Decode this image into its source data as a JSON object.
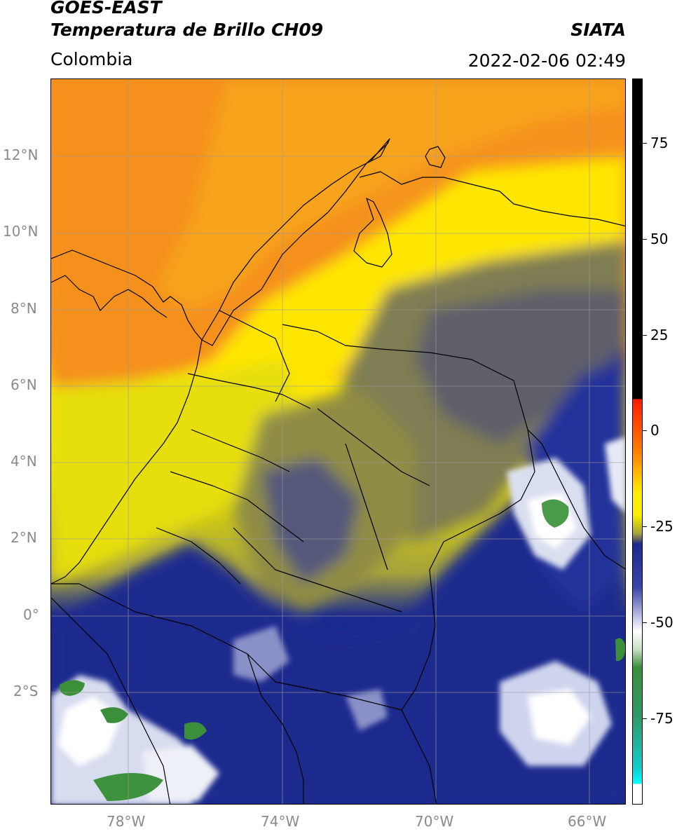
{
  "header": {
    "satellite": "GOES-EAST",
    "product": "Temperatura de Brillo CH09",
    "region": "Colombia",
    "agency": "SIATA",
    "datetime": "2022-02-06 02:49"
  },
  "map": {
    "lat_labels": [
      "12°N",
      "10°N",
      "8°N",
      "6°N",
      "4°N",
      "2°N",
      "0°",
      "2°S"
    ],
    "lon_labels": [
      "78°W",
      "74°W",
      "70°W",
      "66°W"
    ],
    "colors": {
      "warm_orange": "#f5901e",
      "yellow": "#ffee00",
      "olive": "#a6a23c",
      "gray": "#5e5e6a",
      "navy": "#1b2a8e",
      "white": "#f4f6fb",
      "green": "#3c8f3a"
    }
  },
  "colorbar": {
    "labels": [
      "75",
      "50",
      "25",
      "0",
      "-25",
      "-50",
      "-75"
    ]
  }
}
